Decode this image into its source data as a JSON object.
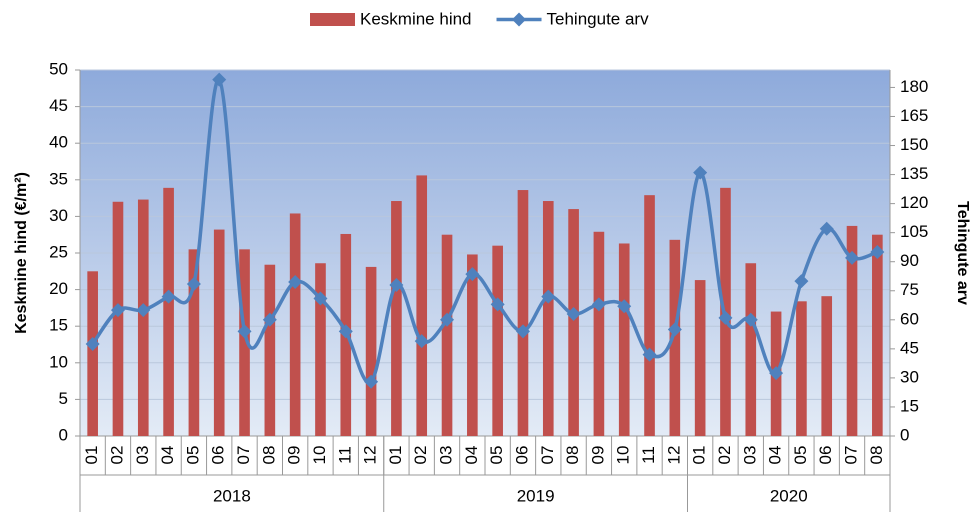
{
  "chart_data": {
    "type": "bar-line",
    "category_groups": [
      {
        "label": "2018",
        "categories": [
          "01",
          "02",
          "03",
          "04",
          "05",
          "06",
          "07",
          "08",
          "09",
          "10",
          "11",
          "12"
        ]
      },
      {
        "label": "2019",
        "categories": [
          "01",
          "02",
          "03",
          "04",
          "05",
          "06",
          "07",
          "08",
          "09",
          "10",
          "11",
          "12"
        ]
      },
      {
        "label": "2020",
        "categories": [
          "01",
          "02",
          "03",
          "04",
          "05",
          "06",
          "07",
          "08"
        ]
      }
    ],
    "series": [
      {
        "name": "Keskmine hind",
        "type": "bar",
        "color": "#c0504d",
        "values": [
          22.5,
          32,
          32.3,
          33.9,
          25.5,
          28.2,
          25.5,
          23.4,
          30.4,
          23.6,
          27.6,
          23.1,
          32.1,
          35.6,
          27.5,
          24.8,
          26,
          33.6,
          32.1,
          31,
          27.9,
          26.3,
          32.9,
          26.8,
          21.3,
          33.9,
          23.6,
          17,
          18.4,
          19.1,
          28.7,
          27.5
        ]
      },
      {
        "name": "Tehingute arv",
        "type": "line",
        "axis": "y2",
        "color": "#4f81bd",
        "values": [
          47.5,
          65,
          65,
          72,
          78.5,
          184,
          54,
          60,
          79.5,
          71,
          54,
          28,
          78,
          49,
          60,
          83.6,
          68,
          54,
          72,
          63,
          68,
          67,
          42,
          55,
          136,
          61,
          60,
          32.5,
          80,
          107,
          92,
          95
        ]
      }
    ],
    "ylabel": "Keskmine hind (€/m²)",
    "y2label": "Tehingute arv",
    "ylim": [
      0,
      50
    ],
    "yticks": [
      0,
      5,
      10,
      15,
      20,
      25,
      30,
      35,
      40,
      45,
      50
    ],
    "y2lim": [
      0,
      189
    ],
    "y2ticks": [
      0,
      15,
      30,
      45,
      60,
      75,
      90,
      105,
      120,
      135,
      150,
      165,
      180
    ],
    "grid": true,
    "legend": "top"
  }
}
